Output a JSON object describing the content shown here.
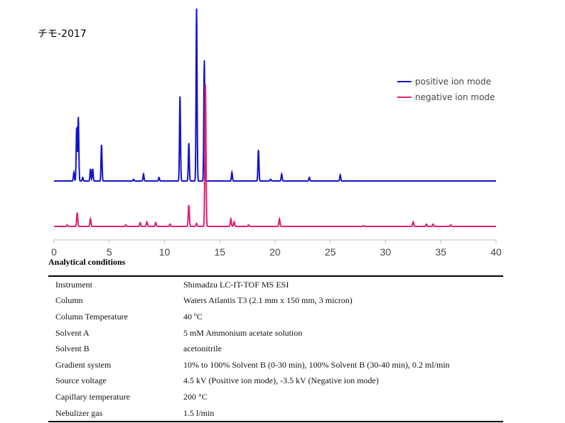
{
  "chart_data": {
    "type": "line",
    "title": "チモ-2017",
    "xlabel": "",
    "ylabel": "",
    "xlim": [
      0,
      40
    ],
    "x_ticks": [
      "0",
      "5",
      "10",
      "15",
      "20",
      "25",
      "30",
      "35",
      "40"
    ],
    "legend_position": "top-right",
    "series": [
      {
        "name": "positive ion mode",
        "color": "#1414c8",
        "baseline_fraction": 0.0,
        "peaks": [
          [
            1.8,
            0.05
          ],
          [
            2.05,
            0.31
          ],
          [
            2.2,
            0.37
          ],
          [
            2.6,
            0.02
          ],
          [
            3.3,
            0.07
          ],
          [
            3.5,
            0.07
          ],
          [
            4.3,
            0.21
          ],
          [
            7.2,
            0.01
          ],
          [
            8.1,
            0.04
          ],
          [
            9.5,
            0.02
          ],
          [
            11.4,
            0.49
          ],
          [
            12.2,
            0.22
          ],
          [
            12.9,
            1.0
          ],
          [
            13.6,
            0.7
          ],
          [
            16.1,
            0.05
          ],
          [
            18.5,
            0.18
          ],
          [
            19.6,
            0.01
          ],
          [
            20.6,
            0.04
          ],
          [
            23.1,
            0.02
          ],
          [
            25.9,
            0.035
          ]
        ]
      },
      {
        "name": "negative ion mode",
        "color": "#e0206e",
        "baseline_fraction": 0.0,
        "peaks": [
          [
            1.2,
            0.01
          ],
          [
            2.1,
            0.09
          ],
          [
            3.3,
            0.05
          ],
          [
            6.5,
            0.01
          ],
          [
            7.8,
            0.025
          ],
          [
            8.4,
            0.03
          ],
          [
            9.2,
            0.025
          ],
          [
            10.5,
            0.015
          ],
          [
            12.2,
            0.14
          ],
          [
            12.9,
            0.02
          ],
          [
            13.7,
            0.93
          ],
          [
            16.0,
            0.05
          ],
          [
            16.3,
            0.03
          ],
          [
            17.6,
            0.01
          ],
          [
            20.4,
            0.05
          ],
          [
            28.0,
            0.005
          ],
          [
            32.5,
            0.03
          ],
          [
            33.7,
            0.015
          ],
          [
            34.3,
            0.015
          ],
          [
            35.9,
            0.01
          ]
        ]
      }
    ]
  },
  "conditions": {
    "heading": "Analytical conditions",
    "rows": [
      {
        "param": "Instrument",
        "value": "Shimadzu LC-IT-TOF MS ESI"
      },
      {
        "param": "Column",
        "value": "Waters Atlantis T3 (2.1 mm x 150 mm, 3 micron)"
      },
      {
        "param": "Column Temperature",
        "value": "40 ºC"
      },
      {
        "param": "Solvent A",
        "value": "5 mM Ammonium acetate solution"
      },
      {
        "param": "Solvent B",
        "value": "acetonitrile"
      },
      {
        "param": "Gradient system",
        "value": "10% to 100% Solvent B (0-30 min), 100% Solvent B (30-40 min), 0.2 ml/min"
      },
      {
        "param": "Source voltage",
        "value": "4.5 kV (Positive ion mode), -3.5 kV (Negative ion mode)"
      },
      {
        "param": "Capillary temperature",
        "value": "200 °C"
      },
      {
        "param": "Nebulizer gas",
        "value": "1.5 l/min"
      }
    ]
  }
}
